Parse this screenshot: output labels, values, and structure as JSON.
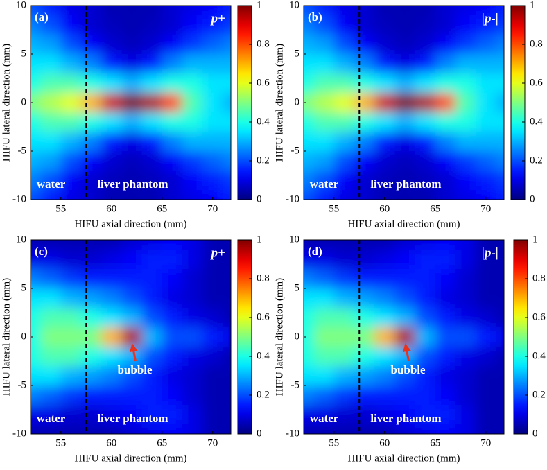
{
  "chart_data": [
    {
      "type": "heatmap",
      "panel_label": "(a)",
      "quantity": "p+",
      "x_label": "HIFU axial direction (mm)",
      "y_label": "HIFU lateral direction (mm)",
      "colormap": "jet",
      "xlim": [
        52,
        71.8
      ],
      "ylim": [
        -10,
        10
      ],
      "xticks": [
        55,
        60,
        65,
        70
      ],
      "yticks": [
        -10,
        -5,
        0,
        5,
        10
      ],
      "clim": [
        0,
        1
      ],
      "cticks": [
        0,
        0.2,
        0.4,
        0.6,
        0.8,
        1
      ],
      "boundary_x": 57.5,
      "annotations": [
        {
          "text": "water",
          "x": 52.6,
          "y": -8.5
        },
        {
          "text": "liver phantom",
          "x": 58.6,
          "y": -8.5
        }
      ],
      "x": [
        52,
        54,
        56,
        58,
        60,
        62,
        64,
        66,
        68,
        70,
        72
      ],
      "y": [
        10,
        8,
        6,
        4,
        2,
        0,
        -2,
        -4,
        -6,
        -8,
        -10
      ],
      "z": [
        [
          0.2,
          0.15,
          0.1,
          0.08,
          0.05,
          0.05,
          0.05,
          0.08,
          0.1,
          0.12,
          0.15
        ],
        [
          0.25,
          0.2,
          0.12,
          0.08,
          0.06,
          0.05,
          0.06,
          0.08,
          0.12,
          0.15,
          0.18
        ],
        [
          0.3,
          0.28,
          0.2,
          0.12,
          0.08,
          0.06,
          0.08,
          0.12,
          0.18,
          0.22,
          0.25
        ],
        [
          0.35,
          0.35,
          0.3,
          0.25,
          0.15,
          0.1,
          0.15,
          0.25,
          0.3,
          0.3,
          0.3
        ],
        [
          0.4,
          0.45,
          0.45,
          0.4,
          0.35,
          0.3,
          0.35,
          0.4,
          0.4,
          0.35,
          0.35
        ],
        [
          0.5,
          0.55,
          0.6,
          0.7,
          0.92,
          1,
          0.95,
          0.8,
          0.45,
          0.35,
          0.3
        ],
        [
          0.4,
          0.45,
          0.45,
          0.4,
          0.35,
          0.3,
          0.35,
          0.4,
          0.4,
          0.35,
          0.35
        ],
        [
          0.35,
          0.35,
          0.3,
          0.25,
          0.15,
          0.1,
          0.15,
          0.25,
          0.3,
          0.3,
          0.3
        ],
        [
          0.3,
          0.28,
          0.2,
          0.12,
          0.08,
          0.06,
          0.08,
          0.12,
          0.18,
          0.22,
          0.25
        ],
        [
          0.25,
          0.2,
          0.12,
          0.08,
          0.06,
          0.05,
          0.06,
          0.08,
          0.12,
          0.15,
          0.18
        ],
        [
          0.2,
          0.15,
          0.1,
          0.08,
          0.05,
          0.05,
          0.05,
          0.08,
          0.1,
          0.12,
          0.15
        ]
      ]
    },
    {
      "type": "heatmap",
      "panel_label": "(b)",
      "quantity": "|p-|",
      "x_label": "HIFU axial direction (mm)",
      "y_label": "HIFU lateral direction (mm)",
      "colormap": "jet",
      "xlim": [
        52,
        71.8
      ],
      "ylim": [
        -10,
        10
      ],
      "xticks": [
        55,
        60,
        65,
        70
      ],
      "yticks": [
        -10,
        -5,
        0,
        5,
        10
      ],
      "clim": [
        0,
        1
      ],
      "cticks": [
        0,
        0.2,
        0.4,
        0.6,
        0.8,
        1
      ],
      "boundary_x": 57.5,
      "annotations": [
        {
          "text": "water",
          "x": 52.6,
          "y": -8.5
        },
        {
          "text": "liver phantom",
          "x": 58.6,
          "y": -8.5
        }
      ],
      "x": [
        52,
        54,
        56,
        58,
        60,
        62,
        64,
        66,
        68,
        70,
        72
      ],
      "y": [
        10,
        8,
        6,
        4,
        2,
        0,
        -2,
        -4,
        -6,
        -8,
        -10
      ],
      "z": [
        [
          0.2,
          0.15,
          0.1,
          0.08,
          0.05,
          0.05,
          0.05,
          0.08,
          0.1,
          0.12,
          0.15
        ],
        [
          0.25,
          0.2,
          0.12,
          0.08,
          0.06,
          0.05,
          0.06,
          0.08,
          0.12,
          0.15,
          0.18
        ],
        [
          0.3,
          0.28,
          0.2,
          0.12,
          0.08,
          0.06,
          0.08,
          0.12,
          0.18,
          0.22,
          0.25
        ],
        [
          0.35,
          0.35,
          0.3,
          0.25,
          0.15,
          0.1,
          0.15,
          0.25,
          0.3,
          0.3,
          0.3
        ],
        [
          0.4,
          0.45,
          0.45,
          0.4,
          0.35,
          0.3,
          0.35,
          0.4,
          0.4,
          0.35,
          0.35
        ],
        [
          0.5,
          0.55,
          0.6,
          0.7,
          0.92,
          1,
          0.95,
          0.8,
          0.45,
          0.35,
          0.3
        ],
        [
          0.4,
          0.45,
          0.45,
          0.4,
          0.35,
          0.3,
          0.35,
          0.4,
          0.4,
          0.35,
          0.35
        ],
        [
          0.35,
          0.35,
          0.3,
          0.25,
          0.15,
          0.1,
          0.15,
          0.25,
          0.3,
          0.3,
          0.3
        ],
        [
          0.3,
          0.28,
          0.2,
          0.12,
          0.08,
          0.06,
          0.08,
          0.12,
          0.18,
          0.22,
          0.25
        ],
        [
          0.25,
          0.2,
          0.12,
          0.08,
          0.06,
          0.05,
          0.06,
          0.08,
          0.12,
          0.15,
          0.18
        ],
        [
          0.2,
          0.15,
          0.1,
          0.08,
          0.05,
          0.05,
          0.05,
          0.08,
          0.1,
          0.12,
          0.15
        ]
      ]
    },
    {
      "type": "heatmap",
      "panel_label": "(c)",
      "quantity": "p+",
      "x_label": "HIFU axial direction (mm)",
      "y_label": "HIFU lateral direction (mm)",
      "colormap": "jet",
      "xlim": [
        52,
        71.8
      ],
      "ylim": [
        -10,
        10
      ],
      "xticks": [
        55,
        60,
        65,
        70
      ],
      "yticks": [
        -10,
        -5,
        0,
        5,
        10
      ],
      "clim": [
        0,
        1
      ],
      "cticks": [
        0,
        0.2,
        0.4,
        0.6,
        0.8,
        1
      ],
      "boundary_x": 57.5,
      "annotations": [
        {
          "text": "water",
          "x": 52.6,
          "y": -8.5
        },
        {
          "text": "liver phantom",
          "x": 58.6,
          "y": -8.5
        },
        {
          "text": "bubble",
          "x": 60.6,
          "y": -3.5,
          "arrow": {
            "x": 61.8,
            "y": -0.4
          }
        }
      ],
      "x": [
        52,
        54,
        56,
        58,
        60,
        62,
        64,
        66,
        68,
        70,
        72
      ],
      "y": [
        10,
        8,
        6,
        4,
        2,
        0,
        -2,
        -4,
        -6,
        -8,
        -10
      ],
      "z": [
        [
          0.05,
          0.05,
          0.05,
          0.05,
          0.05,
          0.08,
          0.1,
          0.12,
          0.1,
          0.05,
          0.05
        ],
        [
          0.1,
          0.1,
          0.08,
          0.08,
          0.1,
          0.12,
          0.15,
          0.15,
          0.1,
          0.05,
          0.05
        ],
        [
          0.25,
          0.22,
          0.18,
          0.15,
          0.15,
          0.15,
          0.15,
          0.12,
          0.08,
          0.05,
          0.05
        ],
        [
          0.35,
          0.35,
          0.3,
          0.28,
          0.25,
          0.2,
          0.15,
          0.1,
          0.08,
          0.05,
          0.05
        ],
        [
          0.4,
          0.45,
          0.45,
          0.4,
          0.35,
          0.3,
          0.2,
          0.15,
          0.1,
          0.08,
          0.05
        ],
        [
          0.4,
          0.5,
          0.5,
          0.5,
          0.7,
          0.95,
          0.3,
          0.2,
          0.2,
          0.15,
          0.1
        ],
        [
          0.4,
          0.45,
          0.45,
          0.4,
          0.35,
          0.3,
          0.2,
          0.15,
          0.1,
          0.08,
          0.05
        ],
        [
          0.35,
          0.35,
          0.3,
          0.28,
          0.25,
          0.2,
          0.15,
          0.1,
          0.08,
          0.05,
          0.05
        ],
        [
          0.25,
          0.22,
          0.18,
          0.15,
          0.15,
          0.15,
          0.15,
          0.12,
          0.08,
          0.05,
          0.05
        ],
        [
          0.1,
          0.1,
          0.08,
          0.08,
          0.1,
          0.12,
          0.15,
          0.15,
          0.1,
          0.05,
          0.05
        ],
        [
          0.05,
          0.05,
          0.05,
          0.05,
          0.05,
          0.08,
          0.1,
          0.12,
          0.1,
          0.05,
          0.05
        ]
      ]
    },
    {
      "type": "heatmap",
      "panel_label": "(d)",
      "quantity": "|p-|",
      "x_label": "HIFU axial direction (mm)",
      "y_label": "HIFU lateral direction (mm)",
      "colormap": "jet",
      "xlim": [
        52,
        71.8
      ],
      "ylim": [
        -10,
        10
      ],
      "xticks": [
        55,
        60,
        65,
        70
      ],
      "yticks": [
        -10,
        -5,
        0,
        5,
        10
      ],
      "clim": [
        0,
        1
      ],
      "cticks": [
        0,
        0.2,
        0.4,
        0.6,
        0.8,
        1
      ],
      "boundary_x": 57.5,
      "annotations": [
        {
          "text": "water",
          "x": 52.6,
          "y": -8.5
        },
        {
          "text": "liver phantom",
          "x": 58.6,
          "y": -8.5
        },
        {
          "text": "bubble",
          "x": 60.6,
          "y": -3.5,
          "arrow": {
            "x": 61.8,
            "y": -0.4
          }
        }
      ],
      "x": [
        52,
        54,
        56,
        58,
        60,
        62,
        64,
        66,
        68,
        70,
        72
      ],
      "y": [
        10,
        8,
        6,
        4,
        2,
        0,
        -2,
        -4,
        -6,
        -8,
        -10
      ],
      "z": [
        [
          0.05,
          0.05,
          0.05,
          0.05,
          0.05,
          0.08,
          0.1,
          0.12,
          0.1,
          0.05,
          0.05
        ],
        [
          0.1,
          0.1,
          0.08,
          0.08,
          0.1,
          0.12,
          0.15,
          0.15,
          0.1,
          0.05,
          0.05
        ],
        [
          0.25,
          0.22,
          0.18,
          0.15,
          0.15,
          0.15,
          0.15,
          0.12,
          0.08,
          0.05,
          0.05
        ],
        [
          0.35,
          0.35,
          0.3,
          0.28,
          0.25,
          0.2,
          0.15,
          0.1,
          0.08,
          0.05,
          0.05
        ],
        [
          0.4,
          0.45,
          0.45,
          0.4,
          0.35,
          0.3,
          0.2,
          0.15,
          0.1,
          0.08,
          0.05
        ],
        [
          0.4,
          0.5,
          0.5,
          0.5,
          0.7,
          0.95,
          0.3,
          0.2,
          0.2,
          0.15,
          0.1
        ],
        [
          0.4,
          0.45,
          0.45,
          0.4,
          0.35,
          0.3,
          0.2,
          0.15,
          0.1,
          0.08,
          0.05
        ],
        [
          0.35,
          0.35,
          0.3,
          0.28,
          0.25,
          0.2,
          0.15,
          0.1,
          0.08,
          0.05,
          0.05
        ],
        [
          0.25,
          0.22,
          0.18,
          0.15,
          0.15,
          0.15,
          0.15,
          0.12,
          0.08,
          0.05,
          0.05
        ],
        [
          0.1,
          0.1,
          0.08,
          0.08,
          0.1,
          0.12,
          0.15,
          0.15,
          0.1,
          0.05,
          0.05
        ],
        [
          0.05,
          0.05,
          0.05,
          0.05,
          0.05,
          0.08,
          0.1,
          0.12,
          0.1,
          0.05,
          0.05
        ]
      ]
    }
  ]
}
